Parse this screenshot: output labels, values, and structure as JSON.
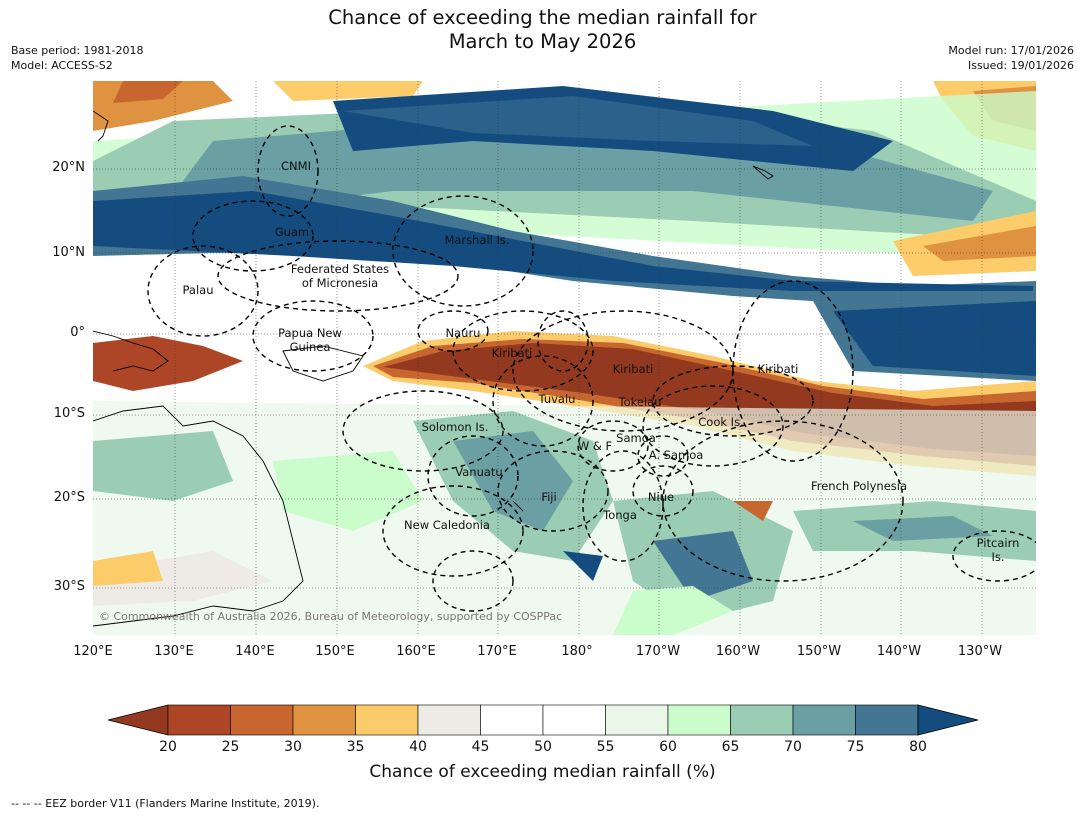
{
  "title": {
    "line1": "Chance of exceeding the median rainfall for",
    "line2": "March to May 2026"
  },
  "meta_left": {
    "base_period": "Base period: 1981-2018",
    "model": "Model: ACCESS-S2"
  },
  "meta_right": {
    "model_run": "Model run: 17/01/2026",
    "issued": "Issued: 19/01/2026"
  },
  "lat_labels": [
    "20°N",
    "10°N",
    "0°",
    "10°S",
    "20°S",
    "30°S"
  ],
  "lon_labels": [
    "120°E",
    "130°E",
    "140°E",
    "150°E",
    "160°E",
    "170°E",
    "180°",
    "170°W",
    "160°W",
    "150°W",
    "140°W",
    "130°W"
  ],
  "places": {
    "cnmi": "CNMI",
    "guam": "Guam",
    "marshall": "Marshall Is.",
    "fsm1": "Federated States",
    "fsm2": "of Micronesia",
    "palau": "Palau",
    "png1": "Papua New",
    "png2": "Guinea",
    "nauru": "Nauru",
    "kiribati_w": "Kiribati",
    "kiribati_c": "Kiribati",
    "kiribati_e": "Kiribati",
    "tuvalu": "Tuvalu",
    "tokelau": "Tokelau",
    "cook": "Cook Is.",
    "solomon": "Solomon Is.",
    "samoa": "Samoa",
    "wf": "W & F",
    "asamoa": "A. Samoa",
    "vanuatu": "Vanuatu",
    "fiji": "Fiji",
    "niue": "Niue",
    "tonga": "Tonga",
    "frpoly": "French Polynesia",
    "newcal": "New Caledonia",
    "pitcairn1": "Pitcairn",
    "pitcairn2": "Is."
  },
  "copyright": "© Commonwealth of Australia 2026, Bureau of Meteorology, supported by COSPPac",
  "colorbar": {
    "ticks": [
      "20",
      "25",
      "30",
      "35",
      "40",
      "45",
      "50",
      "55",
      "60",
      "65",
      "70",
      "75",
      "80"
    ],
    "low_extend_color": "#933920",
    "high_extend_color": "#144c80",
    "bin_colors": [
      "#ad4626",
      "#c8662f",
      "#df9240",
      "#fbcc69",
      "#eeebe6",
      "#ffffff",
      "#ffffff",
      "#eaf6e8",
      "#cbfccb",
      "#9bcdb4",
      "#6aa0a4",
      "#427693"
    ],
    "label": "Chance of exceeding median rainfall (%)"
  },
  "footnote": "--  --  -- EEZ border V11 (Flanders Marine Institute, 2019)."
}
